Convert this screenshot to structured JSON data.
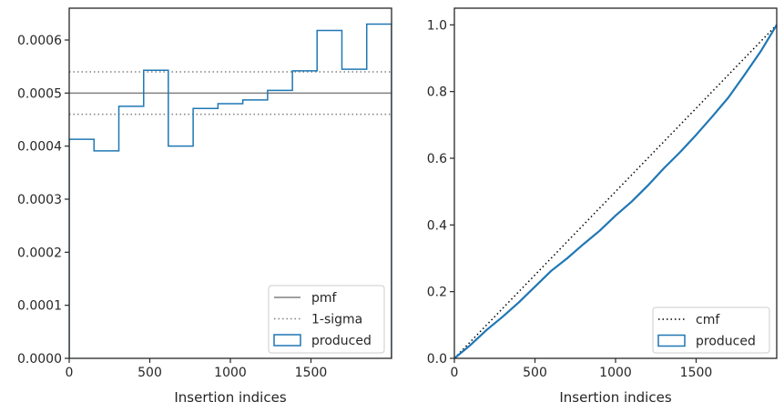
{
  "chart_data": [
    {
      "type": "histogram-step",
      "title": "",
      "xlabel": "Insertion indices",
      "ylabel": "",
      "xlim": [
        0,
        2000
      ],
      "ylim": [
        0,
        0.00066
      ],
      "xticks": [
        0,
        500,
        1000,
        1500
      ],
      "yticks": [
        0,
        0.0001,
        0.0002,
        0.0003,
        0.0004,
        0.0005,
        0.0006
      ],
      "ytick_labels": [
        "0.0000",
        "0.0001",
        "0.0002",
        "0.0003",
        "0.0004",
        "0.0005",
        "0.0006"
      ],
      "grid": false,
      "legend_position": "lower right",
      "bin_edges": [
        0,
        154,
        308,
        462,
        615,
        769,
        923,
        1077,
        1231,
        1385,
        1538,
        1692,
        1846,
        2000
      ],
      "series": [
        {
          "name": "pmf",
          "style": "solid",
          "color": "#808080",
          "kind": "hline",
          "y": 0.0005
        },
        {
          "name": "1-sigma",
          "style": "dotted",
          "color": "#808080",
          "kind": "hlines",
          "y": [
            0.00054,
            0.00046
          ]
        },
        {
          "name": "produced",
          "style": "step",
          "color": "#1f77b4",
          "kind": "step",
          "values": [
            0.000413,
            0.000391,
            0.000475,
            0.000543,
            0.0004,
            0.000471,
            0.00048,
            0.000487,
            0.000505,
            0.000542,
            0.000618,
            0.000545,
            0.00063
          ]
        }
      ],
      "legend": [
        {
          "label": "pmf",
          "style": "solid",
          "color": "#808080"
        },
        {
          "label": "1-sigma",
          "style": "dotted",
          "color": "#808080"
        },
        {
          "label": "produced",
          "style": "patch",
          "color": "#1f77b4"
        }
      ]
    },
    {
      "type": "line",
      "title": "",
      "xlabel": "Insertion indices",
      "ylabel": "",
      "xlim": [
        0,
        2000
      ],
      "ylim": [
        0,
        1.05
      ],
      "xticks": [
        0,
        500,
        1000,
        1500
      ],
      "yticks": [
        0,
        0.2,
        0.4,
        0.6,
        0.8,
        1.0
      ],
      "ytick_labels": [
        "0.0",
        "0.2",
        "0.4",
        "0.6",
        "0.8",
        "1.0"
      ],
      "grid": false,
      "legend_position": "lower right",
      "series": [
        {
          "name": "cmf",
          "style": "dotted",
          "color": "#000000",
          "x": [
            0,
            2000
          ],
          "y": [
            0,
            1
          ]
        },
        {
          "name": "produced",
          "style": "step",
          "color": "#1f77b4",
          "x": [
            0,
            100,
            200,
            300,
            400,
            500,
            600,
            700,
            800,
            900,
            1000,
            1100,
            1200,
            1300,
            1400,
            1500,
            1600,
            1700,
            1800,
            1900,
            2000
          ],
          "y": [
            0,
            0.04,
            0.085,
            0.125,
            0.168,
            0.215,
            0.262,
            0.3,
            0.342,
            0.382,
            0.428,
            0.47,
            0.518,
            0.57,
            0.618,
            0.67,
            0.725,
            0.782,
            0.85,
            0.92,
            1.0
          ]
        }
      ],
      "legend": [
        {
          "label": "cmf",
          "style": "dotted",
          "color": "#000000"
        },
        {
          "label": "produced",
          "style": "patch",
          "color": "#1f77b4"
        }
      ]
    }
  ]
}
